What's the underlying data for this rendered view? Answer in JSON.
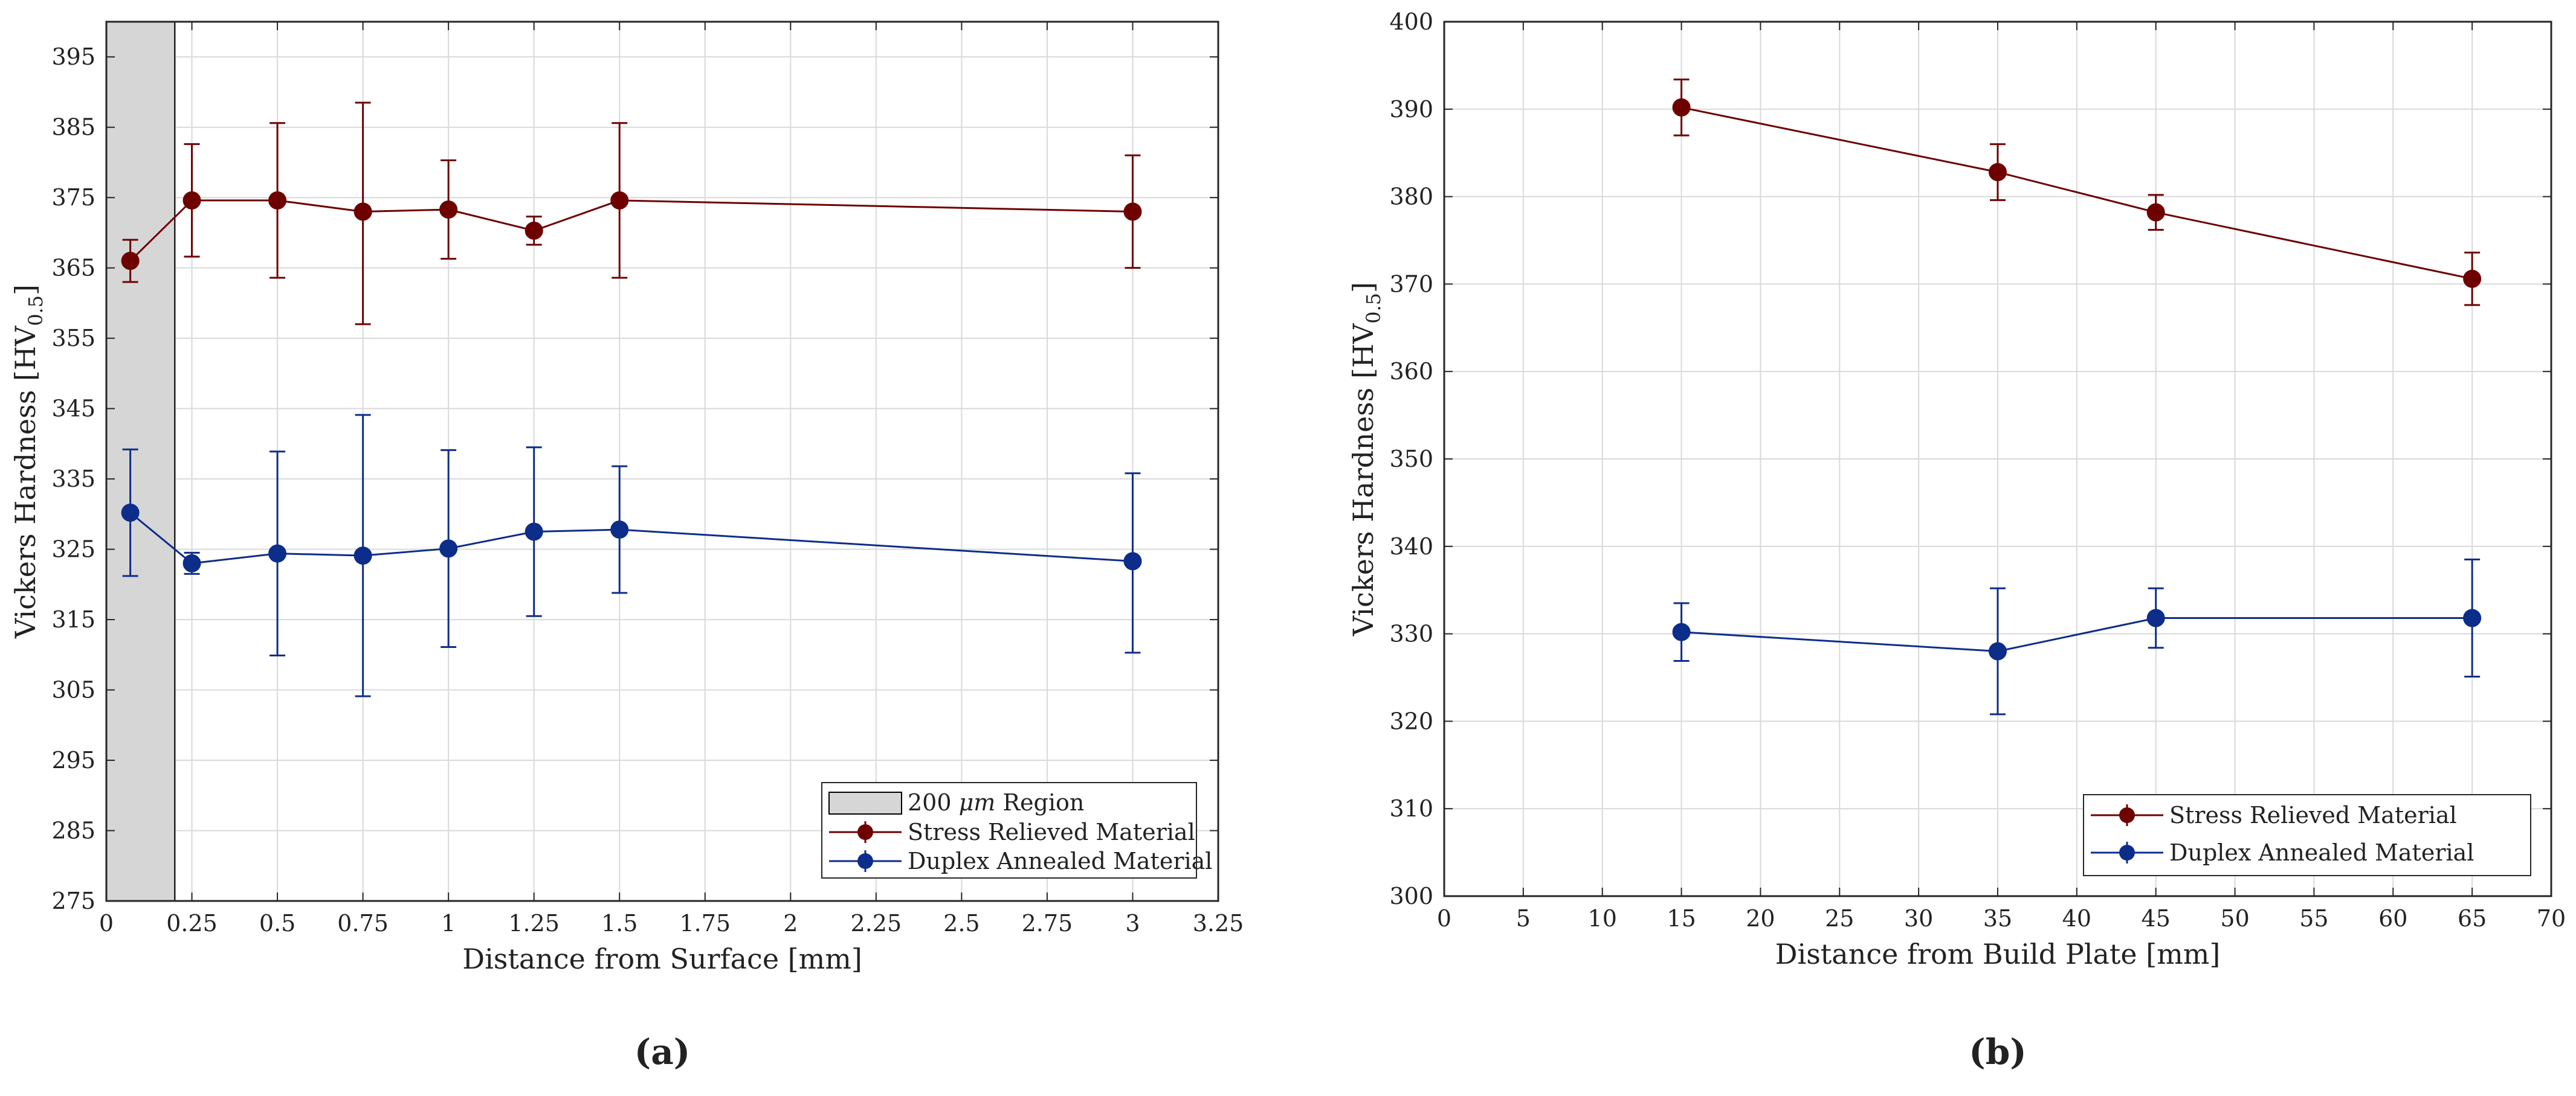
{
  "colors": {
    "stress": "#6e0000",
    "duplex": "#0d2d8a",
    "grid": "#d9d9d9",
    "region": "#d6d6d6"
  },
  "chart_data": [
    {
      "id": "a",
      "type": "line",
      "caption": "(a)",
      "xlabel": "Distance from Surface [mm]",
      "ylabel": "Vickers Hardness [HV",
      "ylabel_sub": "0.5",
      "ylabel_end": "]",
      "xlim": [
        0,
        3.25
      ],
      "ylim": [
        275,
        400
      ],
      "xticks": [
        0,
        0.25,
        0.5,
        0.75,
        1,
        1.25,
        1.5,
        1.75,
        2,
        2.25,
        2.5,
        2.75,
        3,
        3.25
      ],
      "xtick_labels": [
        "0",
        "0.25",
        "0.5",
        "0.75",
        "1",
        "1.25",
        "1.5",
        "1.75",
        "2",
        "2.25",
        "2.5",
        "2.75",
        "3",
        "3.25"
      ],
      "yticks": [
        275,
        285,
        295,
        305,
        315,
        325,
        335,
        345,
        355,
        365,
        375,
        385,
        395
      ],
      "ytick_labels": [
        "275",
        "285",
        "295",
        "305",
        "315",
        "325",
        "335",
        "345",
        "355",
        "365",
        "375",
        "385",
        "395"
      ],
      "grid": true,
      "legend_position": "bottom-right",
      "region": {
        "label_prefix": "200 ",
        "label_unit": "μm",
        "label_suffix": " Region",
        "x_range": [
          0,
          0.2
        ]
      },
      "series": [
        {
          "name": "Stress Relieved Material",
          "color_key": "stress",
          "x": [
            0.07,
            0.25,
            0.5,
            0.75,
            1,
            1.25,
            1.5,
            3
          ],
          "y": [
            366,
            374.6,
            374.6,
            373,
            373.3,
            370.3,
            374.6,
            373
          ],
          "err_low": [
            3,
            8,
            11,
            16,
            7,
            2,
            11,
            8
          ],
          "err_high": [
            3,
            8,
            11,
            15.5,
            7,
            2,
            11,
            8
          ]
        },
        {
          "name": "Duplex Annealed Material",
          "color_key": "duplex",
          "x": [
            0.07,
            0.25,
            0.5,
            0.75,
            1,
            1.25,
            1.5,
            3
          ],
          "y": [
            330.2,
            323,
            324.4,
            324.1,
            325.1,
            327.5,
            327.8,
            323.3
          ],
          "err_low": [
            9,
            1.5,
            14.5,
            20,
            14,
            12,
            9,
            13
          ],
          "err_high": [
            9,
            1.5,
            14.5,
            20,
            14,
            12,
            9,
            12.5
          ]
        }
      ]
    },
    {
      "id": "b",
      "type": "line",
      "caption": "(b)",
      "xlabel": "Distance from Build Plate [mm]",
      "ylabel": "Vickers Hardness [HV",
      "ylabel_sub": "0.5",
      "ylabel_end": "]",
      "xlim": [
        0,
        70
      ],
      "ylim": [
        300,
        400
      ],
      "xticks": [
        0,
        5,
        10,
        15,
        20,
        25,
        30,
        35,
        40,
        45,
        50,
        55,
        60,
        65,
        70
      ],
      "xtick_labels": [
        "0",
        "5",
        "10",
        "15",
        "20",
        "25",
        "30",
        "35",
        "40",
        "45",
        "50",
        "55",
        "60",
        "65",
        "70"
      ],
      "yticks": [
        300,
        310,
        320,
        330,
        340,
        350,
        360,
        370,
        380,
        390,
        400
      ],
      "ytick_labels": [
        "300",
        "310",
        "320",
        "330",
        "340",
        "350",
        "360",
        "370",
        "380",
        "390",
        "400"
      ],
      "grid": true,
      "legend_position": "bottom-right",
      "series": [
        {
          "name": "Stress Relieved Material",
          "color_key": "stress",
          "x": [
            15,
            35,
            45,
            65
          ],
          "y": [
            390.2,
            382.8,
            378.2,
            370.6
          ],
          "err_low": [
            3.2,
            3.2,
            2,
            3
          ],
          "err_high": [
            3.2,
            3.2,
            2,
            3
          ]
        },
        {
          "name": "Duplex Annealed Material",
          "color_key": "duplex",
          "x": [
            15,
            35,
            45,
            65
          ],
          "y": [
            330.2,
            328,
            331.8,
            331.8
          ],
          "err_low": [
            3.3,
            7.2,
            3.4,
            6.7
          ],
          "err_high": [
            3.3,
            7.2,
            3.4,
            6.7
          ]
        }
      ]
    }
  ]
}
